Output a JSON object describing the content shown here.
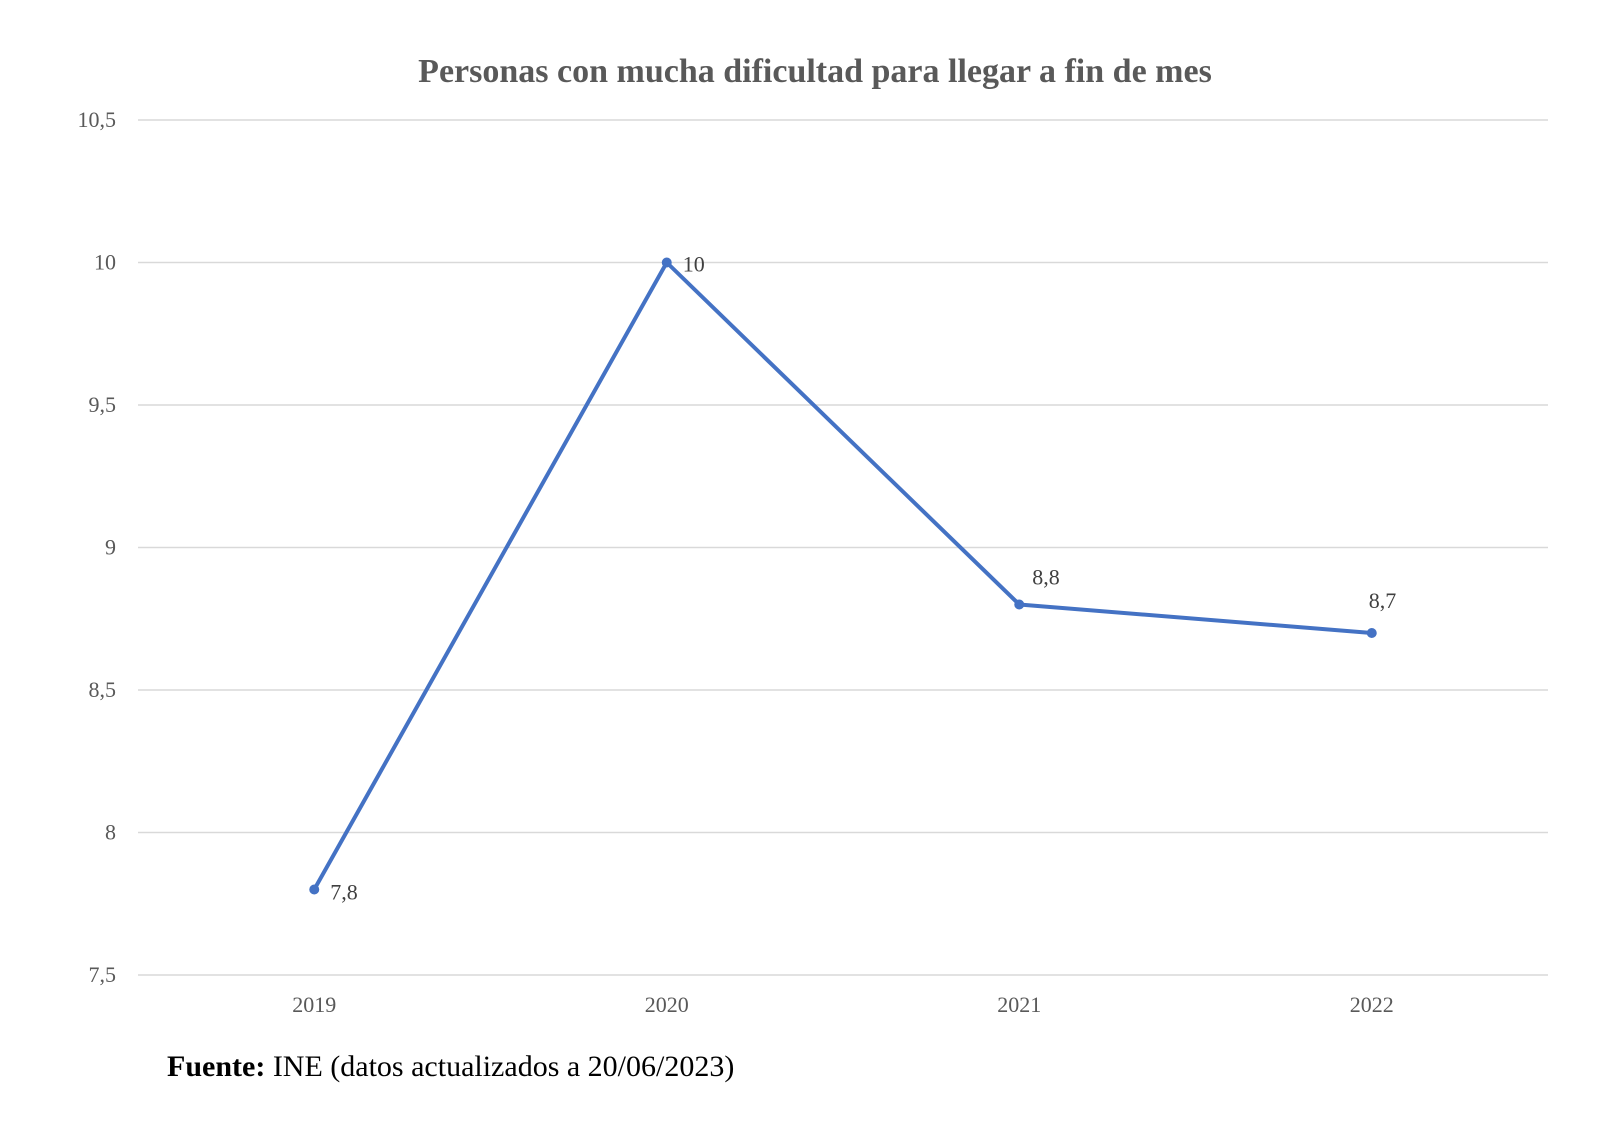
{
  "chart_data": {
    "type": "line",
    "title": "Personas con mucha dificultad para llegar a fin de mes",
    "xlabel": "",
    "ylabel": "",
    "categories": [
      "2019",
      "2020",
      "2021",
      "2022"
    ],
    "series": [
      {
        "name": "Personas con mucha dificultad para llegar a fin de mes",
        "values": [
          7.8,
          10,
          8.8,
          8.7
        ],
        "data_labels": [
          "7,8",
          "10",
          "8,8",
          "8,7"
        ],
        "color": "#4472c4"
      }
    ],
    "ylim": [
      7.5,
      10.5
    ],
    "yticks": [
      7.5,
      8,
      8.5,
      9,
      9.5,
      10,
      10.5
    ],
    "ytick_labels": [
      "7,5",
      "8",
      "8,5",
      "9",
      "9,5",
      "10",
      "10,5"
    ],
    "grid": true,
    "legend": "none"
  },
  "source": {
    "label": "Fuente:",
    "text": "INE (datos actualizados a 20/06/2023)"
  }
}
